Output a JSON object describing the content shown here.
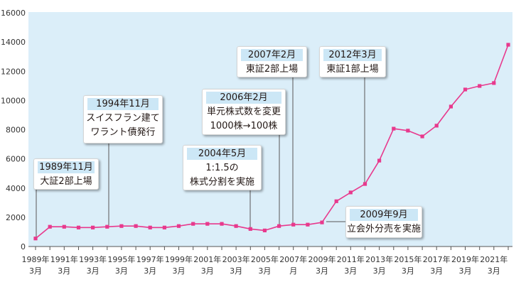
{
  "chart_data": {
    "type": "line",
    "x": [
      1989,
      1990,
      1991,
      1992,
      1993,
      1994,
      1995,
      1996,
      1997,
      1998,
      1999,
      2000,
      2001,
      2002,
      2003,
      2004,
      2005,
      2006,
      2007,
      2008,
      2009,
      2010,
      2011,
      2012,
      2013,
      2014,
      2015,
      2016,
      2017,
      2018,
      2019,
      2020,
      2021,
      2022
    ],
    "series": [
      {
        "values": [
          550,
          1350,
          1350,
          1300,
          1300,
          1350,
          1400,
          1400,
          1300,
          1300,
          1400,
          1550,
          1550,
          1550,
          1400,
          1200,
          1100,
          1400,
          1500,
          1500,
          1650,
          3100,
          3700,
          4280,
          5880,
          8070,
          7930,
          7540,
          8270,
          9580,
          10750,
          10990,
          11190,
          13810
        ]
      }
    ],
    "xlim": [
      1989,
      2022
    ],
    "ylim": [
      0,
      16000
    ],
    "y_ticks": [
      0,
      2000,
      4000,
      6000,
      8000,
      10000,
      12000,
      14000,
      16000
    ],
    "x_ticks": [
      {
        "x": 1989,
        "line1": "1989年",
        "line2": "3月"
      },
      {
        "x": 1991,
        "line1": "1991年",
        "line2": "3月"
      },
      {
        "x": 1993,
        "line1": "1993年",
        "line2": "3月"
      },
      {
        "x": 1995,
        "line1": "1995年",
        "line2": "3月"
      },
      {
        "x": 1997,
        "line1": "1997年",
        "line2": "3月"
      },
      {
        "x": 1999,
        "line1": "1999年",
        "line2": "3月"
      },
      {
        "x": 2001,
        "line1": "2001年",
        "line2": "3月"
      },
      {
        "x": 2003,
        "line1": "2003年",
        "line2": "3月"
      },
      {
        "x": 2005,
        "line1": "2005年",
        "line2": "3月"
      },
      {
        "x": 2007,
        "line1": "2007年",
        "line2": "月"
      },
      {
        "x": 2009,
        "line1": "2009年",
        "line2": "3月"
      },
      {
        "x": 2011,
        "line1": "2011年",
        "line2": "3月"
      },
      {
        "x": 2013,
        "line1": "2013年",
        "line2": "3月"
      },
      {
        "x": 2015,
        "line1": "2015年",
        "line2": "3月"
      },
      {
        "x": 2017,
        "line1": "2017年",
        "line2": "3月"
      },
      {
        "x": 2019,
        "line1": "2019年",
        "line2": "3月"
      },
      {
        "x": 2021,
        "line1": "2021年",
        "line2": "3月"
      }
    ],
    "grid": false,
    "annotations": [
      {
        "date": "1989年11月",
        "lines": [
          "大証2部上場"
        ]
      },
      {
        "date": "1994年11月",
        "lines": [
          "スイスフラン建て",
          "ワラント債発行"
        ]
      },
      {
        "date": "2004年5月",
        "lines": [
          "1:1.5の",
          "株式分割を実施"
        ]
      },
      {
        "date": "2006年2月",
        "lines": [
          "単元株式数を変更",
          "1000株→100株"
        ]
      },
      {
        "date": "2007年2月",
        "lines": [
          "東証2部上場"
        ]
      },
      {
        "date": "2009年9月",
        "lines": [
          "立会外分売を実施"
        ]
      },
      {
        "date": "2012年3月",
        "lines": [
          "東証1部上場"
        ]
      }
    ],
    "colors": {
      "line": "#e8398d",
      "plot_background": "#dbeef9",
      "label_band": "#cce7f6",
      "pointer": "#595757",
      "axis": "#555555"
    }
  }
}
